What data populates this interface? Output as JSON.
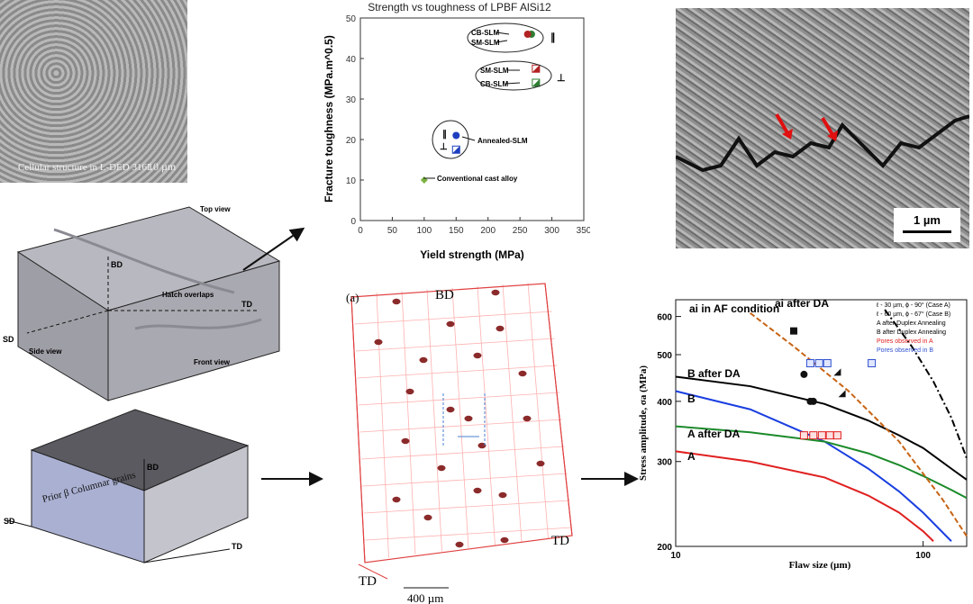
{
  "top_left_sem": {
    "caption": "Cellular structure in L-DED 316L",
    "scale": "10 µm"
  },
  "top_right_sem": {
    "scale": "1 µm"
  },
  "block_top": {
    "top_view": "Top view",
    "hatch": "Hatch overlaps",
    "front_view": "Front view",
    "side_view": "Side view",
    "bd": "BD",
    "td": "TD",
    "sd": "SD"
  },
  "block_bottom": {
    "grains": "Prior β Columnar grains",
    "bd": "BD",
    "td": "TD",
    "sd": "SD"
  },
  "ct_panel": {
    "panel_label": "(a)",
    "bd": "BD",
    "td": "TD",
    "scale": "400 µm"
  },
  "chart_data": [
    {
      "type": "scatter",
      "title": "Strength vs toughness of LPBF AlSi12",
      "xlabel": "Yield strength (MPa)",
      "ylabel": "Fracture toughness (MPa.m^0.5)",
      "xlim": [
        0,
        350
      ],
      "ylim": [
        0,
        50
      ],
      "xticks": [
        "0",
        "50",
        "100",
        "150",
        "200",
        "250",
        "300",
        "350"
      ],
      "yticks": [
        "0",
        "10",
        "20",
        "30",
        "40",
        "50"
      ],
      "series": [
        {
          "name": "CB-SLM",
          "orientation": "∥",
          "x": 268,
          "y": 46,
          "color": "#2e7d32"
        },
        {
          "name": "SM-SLM",
          "orientation": "∥",
          "x": 262,
          "y": 46,
          "color": "#b22222"
        },
        {
          "name": "SM-SLM",
          "orientation": "⊥",
          "x": 275,
          "y": 37.5,
          "color": "#b22222"
        },
        {
          "name": "CB-SLM",
          "orientation": "⊥",
          "x": 275,
          "y": 34,
          "color": "#2e7d32"
        },
        {
          "name": "Annealed-SLM",
          "orientation": "∥",
          "x": 150,
          "y": 21,
          "color": "#1f3fbf"
        },
        {
          "name": "Annealed-SLM",
          "orientation": "⊥",
          "x": 150,
          "y": 17.5,
          "color": "#1f3fbf"
        },
        {
          "name": "Conventional cast alloy",
          "x": 100,
          "y": 10,
          "color": "#7cb342"
        }
      ]
    },
    {
      "type": "line",
      "xlabel": "Flaw size (µm)",
      "ylabel": "Stress amplitude, σa (MPa)",
      "xscale": "log",
      "yscale": "log",
      "xlim": [
        10,
        150
      ],
      "ylim": [
        200,
        650
      ],
      "xticks": [
        "10",
        "100"
      ],
      "yticks": [
        "200",
        "300",
        "400",
        "500",
        "600"
      ],
      "series": [
        {
          "name": "B after DA",
          "color": "#000000",
          "x": [
            10,
            20,
            40,
            60,
            80,
            100,
            130,
            150
          ],
          "y": [
            450,
            430,
            395,
            365,
            340,
            320,
            290,
            275
          ]
        },
        {
          "name": "B",
          "color": "#1a3fe0",
          "x": [
            10,
            20,
            40,
            60,
            80,
            100,
            130
          ],
          "y": [
            420,
            385,
            330,
            290,
            260,
            235,
            205
          ]
        },
        {
          "name": "A after DA",
          "color": "#1b8a2a",
          "x": [
            10,
            20,
            40,
            60,
            80,
            100,
            130,
            150
          ],
          "y": [
            355,
            345,
            330,
            312,
            295,
            280,
            262,
            252
          ]
        },
        {
          "name": "A",
          "color": "#e02020",
          "x": [
            10,
            20,
            40,
            60,
            80,
            100,
            110
          ],
          "y": [
            315,
            300,
            278,
            255,
            235,
            215,
            205
          ]
        },
        {
          "name": "ai in AF condition",
          "color": "#c86414",
          "x": [
            20,
            30,
            50,
            80,
            120,
            150
          ],
          "y": [
            610,
            520,
            420,
            330,
            250,
            210
          ]
        },
        {
          "name": "ai after DA",
          "color": "#000000",
          "x": [
            70,
            90,
            110,
            130,
            150
          ],
          "y": [
            620,
            520,
            440,
            370,
            305
          ]
        }
      ],
      "annotations": [
        "ai in AF condition",
        "ai after DA",
        "B after DA",
        "B",
        "A after DA",
        "A"
      ],
      "legend": [
        "ℓ - 30 µm, ϕ - 90° (Case A)",
        "ℓ - 60 µm, ϕ - 67° (Case B)",
        "A after Duplex Annealing",
        "B after Duplex Annealing",
        "Pores observed in A",
        "Pores observed in B"
      ]
    }
  ]
}
